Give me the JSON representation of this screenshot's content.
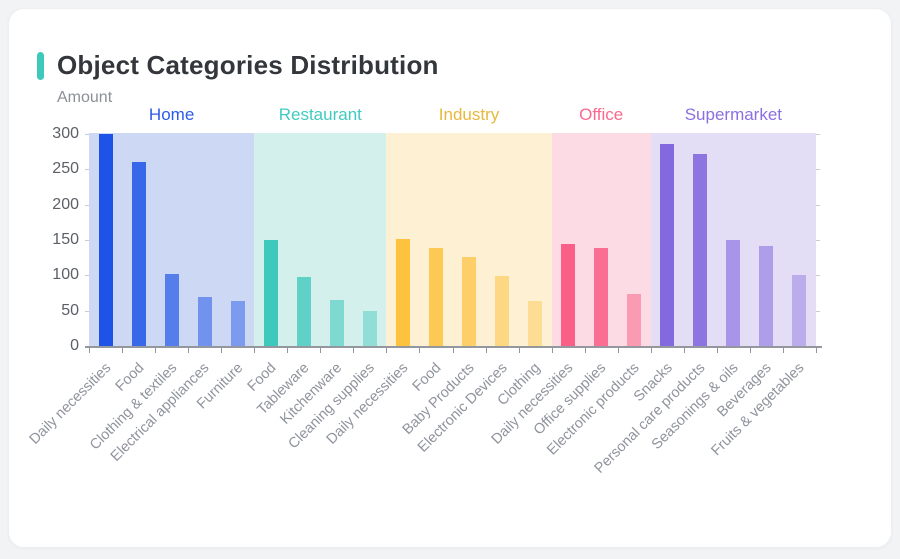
{
  "page": {
    "title": "Object Categories Distribution",
    "accent_color": "#3ec9bd",
    "background_color": "#f1f3f5",
    "card_color": "#ffffff"
  },
  "chart_data": {
    "type": "bar",
    "title": "Object Categories Distribution",
    "xlabel": "",
    "ylabel": "Amount",
    "ylim": [
      0,
      300
    ],
    "yticks": [
      0,
      50,
      100,
      150,
      200,
      250,
      300
    ],
    "grid": false,
    "legend_position": "top (group labels above colored bands)",
    "axis_color": "#94979e",
    "groups": [
      {
        "name": "Home",
        "label_color": "#2d5be8",
        "bar_color": "#1d53e6",
        "band_color": "#cdd8f5",
        "categories": [
          "Daily necessities",
          "Food",
          "Clothing & textiles",
          "Electrical appliances",
          "Furniture"
        ],
        "values": [
          300,
          260,
          102,
          69,
          63
        ],
        "bar_opacities": [
          1,
          0.85,
          0.68,
          0.52,
          0.45
        ]
      },
      {
        "name": "Restaurant",
        "label_color": "#41cbbf",
        "bar_color": "#3fc8bc",
        "band_color": "#d3f0ec",
        "categories": [
          "Food",
          "Tableware",
          "Kitchenware",
          "Cleaning supplies"
        ],
        "values": [
          150,
          97,
          65,
          50
        ],
        "bar_opacities": [
          1,
          0.78,
          0.58,
          0.45
        ]
      },
      {
        "name": "Industry",
        "label_color": "#e8b83d",
        "bar_color": "#fdc23e",
        "band_color": "#fdf0d3",
        "categories": [
          "Daily necessities",
          "Food",
          "Baby Products",
          "Electronic Devices",
          "Clothing"
        ],
        "values": [
          151,
          139,
          126,
          99,
          63
        ],
        "bar_opacities": [
          1,
          0.85,
          0.72,
          0.55,
          0.42
        ]
      },
      {
        "name": "Office",
        "label_color": "#fa6a8f",
        "bar_color": "#fa5f87",
        "band_color": "#fcdbe4",
        "categories": [
          "Daily necessities",
          "Office supplies",
          "Electronic products"
        ],
        "values": [
          144,
          139,
          74
        ],
        "bar_opacities": [
          1,
          0.88,
          0.52
        ]
      },
      {
        "name": "Supermarket",
        "label_color": "#8a70e0",
        "bar_color": "#8468de",
        "band_color": "#e3def6",
        "categories": [
          "Snacks",
          "Personal care products",
          "Seasonings & oils",
          "Beverages",
          "Fruits & vegetables"
        ],
        "values": [
          286,
          272,
          150,
          142,
          101
        ],
        "bar_opacities": [
          1,
          0.9,
          0.62,
          0.55,
          0.42
        ]
      }
    ]
  }
}
